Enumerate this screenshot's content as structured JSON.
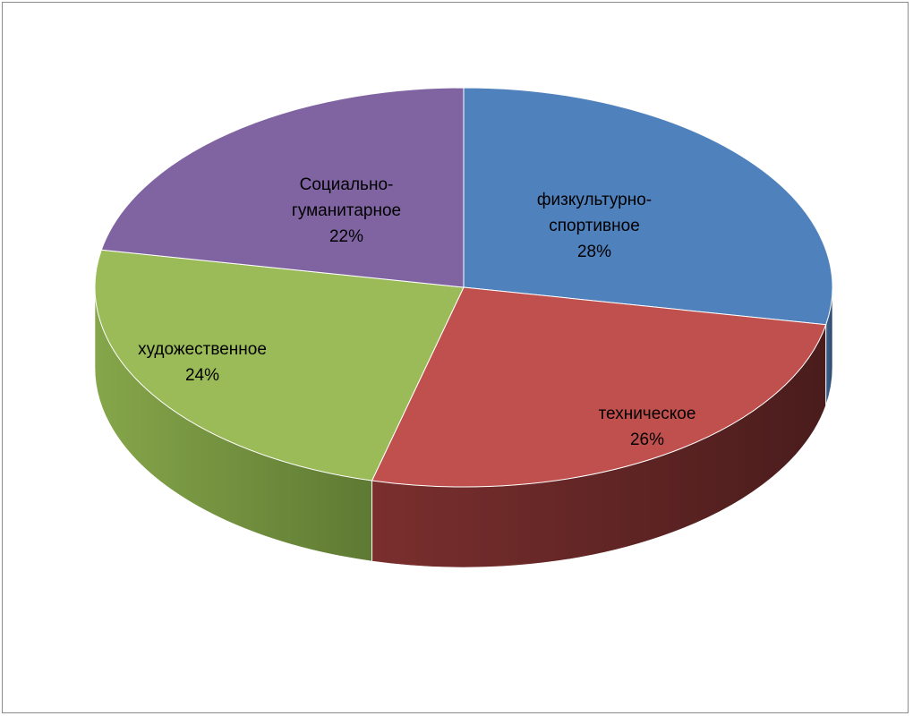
{
  "chart_data": {
    "type": "pie",
    "style": "3d",
    "legend": "none",
    "categories": [
      "физкультурно-спортивное",
      "техническое",
      "художественное",
      "Социально-гуманитарное"
    ],
    "values": [
      28,
      26,
      24,
      22
    ],
    "value_unit": "%",
    "data_labels": [
      [
        "физкультурно-",
        "спортивное",
        "28%"
      ],
      [
        "техническое",
        "26%"
      ],
      [
        "художественное",
        "24%"
      ],
      [
        "Социально-",
        "гуманитарное",
        "22%"
      ]
    ],
    "colors": [
      "#4F81BD",
      "#C0504D",
      "#9BBB59",
      "#8064A2"
    ],
    "side_colors": {
      "dark": [
        "#2E4A6E",
        "#4A1C1C",
        "#5E7A33",
        "#4A3A66"
      ],
      "mid": [
        "#3D6391",
        "#7A2F2E",
        "#86A64A",
        "#6A5388"
      ]
    }
  }
}
